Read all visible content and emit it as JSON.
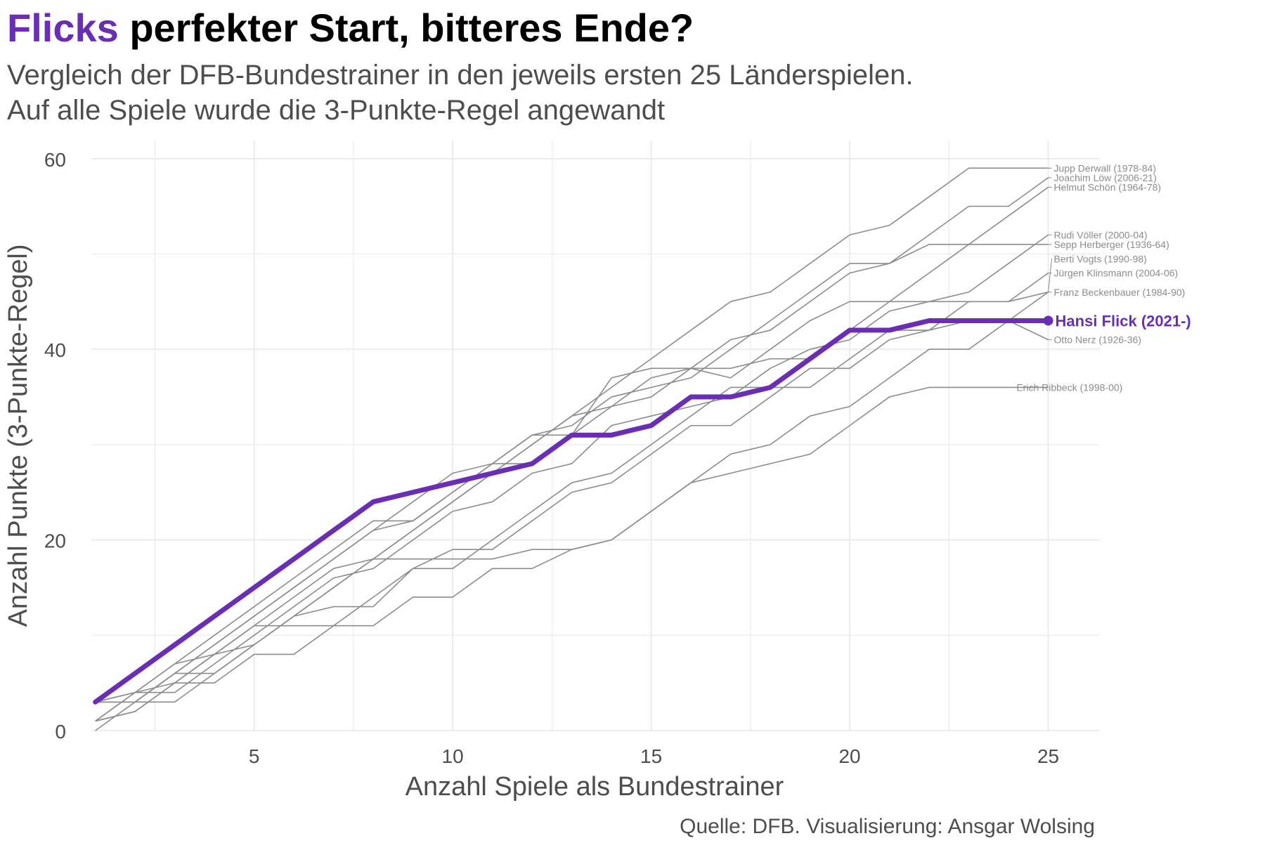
{
  "header": {
    "title_highlight": "Flicks",
    "title_rest": " perfekter Start, bitteres Ende?",
    "subtitle_line1": "Vergleich der DFB-Bundestrainer in den jeweils ersten 25 Länderspielen.",
    "subtitle_line2": "Auf alle Spiele wurde die 3-Punkte-Regel angewandt"
  },
  "caption": "Quelle: DFB. Visualisierung: Ansgar Wolsing",
  "colors": {
    "highlight": "#6a2db5",
    "other_lines": "#8c8c8c",
    "grid": "#e8e8e8",
    "axis_text": "#4d4d4d",
    "label_text": "#8c8c8c"
  },
  "chart_data": {
    "type": "line",
    "xlabel": "Anzahl Spiele als Bundestrainer",
    "ylabel": "Anzahl Punkte (3-Punkte-Regel)",
    "xlim": [
      0.9,
      26.3
    ],
    "ylim": [
      0,
      60
    ],
    "x_ticks": [
      5,
      10,
      15,
      20,
      25
    ],
    "y_ticks": [
      0,
      20,
      40,
      60
    ],
    "grid": true,
    "legend": "direct-labels-right",
    "highlight": {
      "name": "Hansi Flick (2021-)",
      "x": [
        1,
        2,
        3,
        4,
        5,
        6,
        7,
        8,
        9,
        10,
        11,
        12,
        13,
        14,
        15,
        16,
        17,
        18,
        19,
        20,
        21,
        22,
        23,
        24,
        25
      ],
      "values": [
        3,
        6,
        9,
        12,
        15,
        18,
        21,
        24,
        25,
        26,
        27,
        28,
        31,
        31,
        32,
        35,
        35,
        36,
        39,
        42,
        42,
        43,
        43,
        43,
        43
      ]
    },
    "series": [
      {
        "name": "Jupp Derwall (1978-84)",
        "values": [
          3,
          4,
          7,
          8,
          9,
          12,
          15,
          18,
          21,
          24,
          27,
          30,
          33,
          36,
          39,
          42,
          45,
          46,
          49,
          52,
          53,
          56,
          59,
          59,
          59
        ]
      },
      {
        "name": "Joachim Löw (2006-21)",
        "values": [
          1,
          4,
          7,
          10,
          13,
          16,
          19,
          22,
          22,
          25,
          28,
          31,
          32,
          35,
          36,
          37,
          40,
          43,
          46,
          49,
          49,
          52,
          55,
          55,
          58
        ]
      },
      {
        "name": "Helmut Schön (1964-78)",
        "values": [
          3,
          3,
          6,
          9,
          12,
          15,
          18,
          21,
          24,
          27,
          28,
          28,
          31,
          34,
          37,
          38,
          41,
          42,
          45,
          48,
          49,
          51,
          51,
          54,
          57
        ]
      },
      {
        "name": "Rudi Völler (2000-04)",
        "values": [
          1,
          4,
          5,
          8,
          11,
          14,
          17,
          18,
          21,
          24,
          27,
          30,
          33,
          34,
          35,
          38,
          37,
          40,
          43,
          45,
          45,
          45,
          46,
          49,
          52
        ]
      },
      {
        "name": "Sepp Herberger (1936-64)",
        "values": [
          3,
          3,
          6,
          9,
          12,
          15,
          18,
          21,
          22,
          25,
          28,
          31,
          31,
          37,
          38,
          38,
          38,
          39,
          39,
          42,
          45,
          48,
          51,
          51,
          51
        ]
      },
      {
        "name": "Berti Vogts (1990-98)",
        "values": [
          3,
          3,
          6,
          6,
          9,
          12,
          15,
          18,
          18,
          18,
          18,
          19,
          19,
          20,
          23,
          26,
          29,
          30,
          33,
          34,
          37,
          40,
          40,
          43,
          46
        ]
      },
      {
        "name": "Jürgen Klinsmann (2004-06)",
        "values": [
          1,
          2,
          5,
          5,
          8,
          8,
          11,
          14,
          17,
          17,
          20,
          23,
          26,
          27,
          30,
          33,
          36,
          36,
          36,
          39,
          42,
          42,
          45,
          45,
          48
        ]
      },
      {
        "name": "Franz Beckenbauer (1984-90)",
        "values": [
          3,
          4,
          4,
          7,
          10,
          13,
          16,
          17,
          20,
          23,
          24,
          27,
          28,
          32,
          33,
          34,
          35,
          38,
          40,
          41,
          44,
          45,
          45,
          45,
          46
        ]
      },
      {
        "name": "Otto Nerz (1926-36)",
        "values": [
          0,
          3,
          3,
          6,
          9,
          12,
          13,
          13,
          17,
          19,
          19,
          22,
          25,
          26,
          29,
          32,
          32,
          35,
          38,
          38,
          41,
          42,
          43,
          43,
          41
        ]
      },
      {
        "name": "Erich Ribbeck (1998-00)",
        "values": [
          1,
          2,
          5,
          8,
          11,
          11,
          11,
          11,
          14,
          14,
          17,
          17,
          19,
          20,
          23,
          26,
          27,
          28,
          29,
          32,
          35,
          36,
          36,
          36,
          36
        ]
      }
    ],
    "end_labels": [
      {
        "name": "Jupp Derwall (1978-84)",
        "y": 59
      },
      {
        "name": "Joachim Löw (2006-21)",
        "y": 58
      },
      {
        "name": "Helmut Schön (1964-78)",
        "y": 57
      },
      {
        "name": "Rudi Völler (2000-04)",
        "y": 52
      },
      {
        "name": "Sepp Herberger (1936-64)",
        "y": 51
      },
      {
        "name": "Berti Vogts (1990-98)",
        "y": 49.5
      },
      {
        "name": "Jürgen Klinsmann (2004-06)",
        "y": 48
      },
      {
        "name": "Franz Beckenbauer (1984-90)",
        "y": 46
      },
      {
        "name": "Otto Nerz (1926-36)",
        "y": 41
      },
      {
        "name": "Erich Ribbeck (1998-00)",
        "y": 36
      }
    ]
  }
}
